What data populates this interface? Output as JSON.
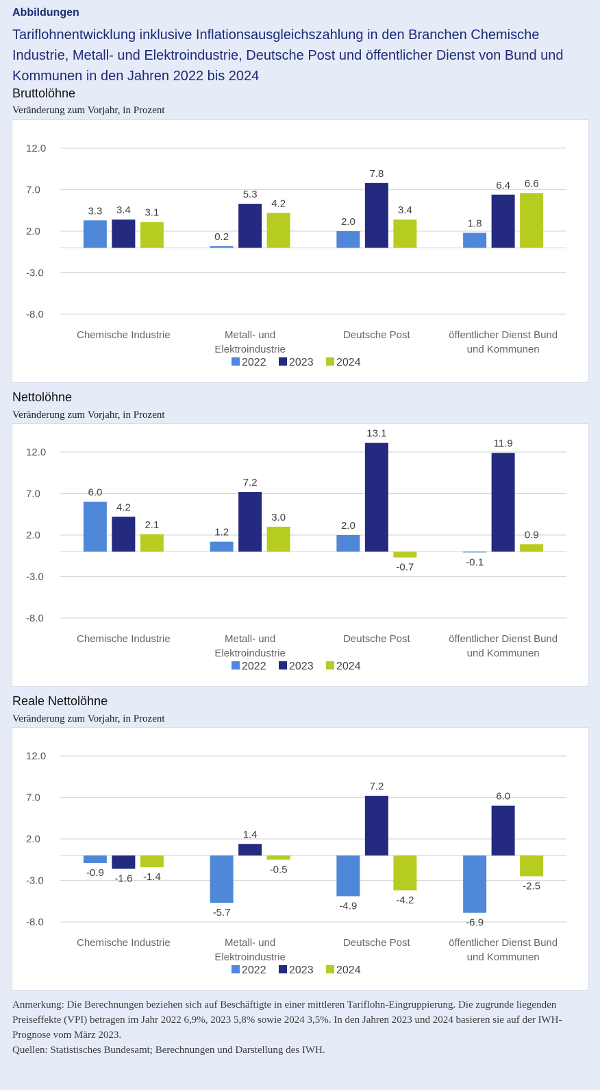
{
  "header": {
    "section_label": "Abbildungen",
    "title": "Tariflohnentwicklung inklusive Inflationsausgleichszahlung in den Branchen Chemische Industrie, Metall- und Elektroindustrie, Deutsche Post und öffentlicher Dienst von Bund und Kommunen in den Jahren 2022 bis 2024"
  },
  "colors": {
    "series_2022": "#4f87d9",
    "series_2023": "#232a7f",
    "series_2024": "#b7cc21"
  },
  "chart_data": [
    {
      "type": "bar",
      "title": "Bruttolöhne",
      "subtitle": "Veränderung zum Vorjahr, in Prozent",
      "categories": [
        "Chemische Industrie",
        "Metall- und Elektroindustrie",
        "Deutsche Post",
        "öffentlicher Dienst Bund und Kommunen"
      ],
      "category_lines": [
        [
          "Chemische Industrie"
        ],
        [
          "Metall- und",
          "Elektroindustrie"
        ],
        [
          "Deutsche Post"
        ],
        [
          "öffentlicher Dienst Bund",
          "und Kommunen"
        ]
      ],
      "series": [
        {
          "name": "2022",
          "values": [
            3.3,
            0.2,
            2.0,
            1.8
          ]
        },
        {
          "name": "2023",
          "values": [
            3.4,
            5.3,
            7.8,
            6.4
          ]
        },
        {
          "name": "2024",
          "values": [
            3.1,
            4.2,
            3.4,
            6.6
          ]
        }
      ],
      "data_labels": [
        [
          "3.3",
          "0.2",
          "2.0",
          "1.8"
        ],
        [
          "3.4",
          "5.3",
          "7.8",
          "6.4"
        ],
        [
          "3.1",
          "4.2",
          "3.4",
          "6.6"
        ]
      ],
      "yticks": [
        12.0,
        7.0,
        2.0,
        -3.0,
        -8.0
      ],
      "ytick_labels": [
        "12.0",
        "7.0",
        "2.0",
        "-3.0",
        "-8.0"
      ],
      "ylim": [
        -8,
        12
      ],
      "grid": true,
      "legend": "bottom-center"
    },
    {
      "type": "bar",
      "title": "Nettolöhne",
      "subtitle": "Veränderung zum Vorjahr, in Prozent",
      "categories": [
        "Chemische Industrie",
        "Metall- und Elektroindustrie",
        "Deutsche Post",
        "öffentlicher Dienst Bund und Kommunen"
      ],
      "category_lines": [
        [
          "Chemische Industrie"
        ],
        [
          "Metall- und",
          "Elektroindustrie"
        ],
        [
          "Deutsche Post"
        ],
        [
          "öffentlicher Dienst Bund",
          "und Kommunen"
        ]
      ],
      "series": [
        {
          "name": "2022",
          "values": [
            6.0,
            1.2,
            2.0,
            -0.1
          ]
        },
        {
          "name": "2023",
          "values": [
            4.2,
            7.2,
            13.1,
            11.9
          ]
        },
        {
          "name": "2024",
          "values": [
            2.1,
            3.0,
            -0.7,
            0.9
          ]
        }
      ],
      "data_labels": [
        [
          "6.0",
          "1.2",
          "2.0",
          "-0.1"
        ],
        [
          "4.2",
          "7.2",
          "13.1",
          "11.9"
        ],
        [
          "2.1",
          "3.0",
          "-0.7",
          "0.9"
        ]
      ],
      "yticks": [
        12.0,
        7.0,
        2.0,
        -3.0,
        -8.0
      ],
      "ytick_labels": [
        "12.0",
        "7.0",
        "2.0",
        "-3.0",
        "-8.0"
      ],
      "ylim": [
        -8,
        12
      ],
      "grid": true,
      "legend": "bottom-center"
    },
    {
      "type": "bar",
      "title": "Reale Nettolöhne",
      "subtitle": "Veränderung zum Vorjahr, in Prozent",
      "categories": [
        "Chemische Industrie",
        "Metall- und Elektroindustrie",
        "Deutsche Post",
        "öffentlicher Dienst Bund und Kommunen"
      ],
      "category_lines": [
        [
          "Chemische Industrie"
        ],
        [
          "Metall- und",
          "Elektroindustrie"
        ],
        [
          "Deutsche Post"
        ],
        [
          "öffentlicher Dienst Bund",
          "und Kommunen"
        ]
      ],
      "series": [
        {
          "name": "2022",
          "values": [
            -0.9,
            -5.7,
            -4.9,
            -6.9
          ]
        },
        {
          "name": "2023",
          "values": [
            -1.6,
            1.4,
            7.2,
            6.0
          ]
        },
        {
          "name": "2024",
          "values": [
            -1.4,
            -0.5,
            -4.2,
            -2.5
          ]
        }
      ],
      "data_labels": [
        [
          "-0.9",
          "-5.7",
          "-4.9",
          "-6.9"
        ],
        [
          "-1.6",
          "1.4",
          "7.2",
          "6.0"
        ],
        [
          "-1.4",
          "-0.5",
          "-4.2",
          "-2.5"
        ]
      ],
      "yticks": [
        12.0,
        7.0,
        2.0,
        -3.0,
        -8.0
      ],
      "ytick_labels": [
        "12.0",
        "7.0",
        "2.0",
        "-3.0",
        "-8.0"
      ],
      "ylim": [
        -8,
        12
      ],
      "grid": true,
      "legend": "bottom-center"
    }
  ],
  "footer": {
    "note": "Anmerkung: Die Berechnungen beziehen sich auf Beschäftigte in einer mittleren Tariflohn-Eingruppierung. Die zugrunde liegenden Preiseffekte (VPI) betragen im Jahr 2022 6,9%, 2023 5,8% sowie 2024 3,5%. In den Jahren 2023 und 2024 basieren sie auf der IWH-Prognose vom März 2023.",
    "sources": "Quellen: Statistisches Bundesamt; Berechnungen und Darstellung des IWH."
  }
}
